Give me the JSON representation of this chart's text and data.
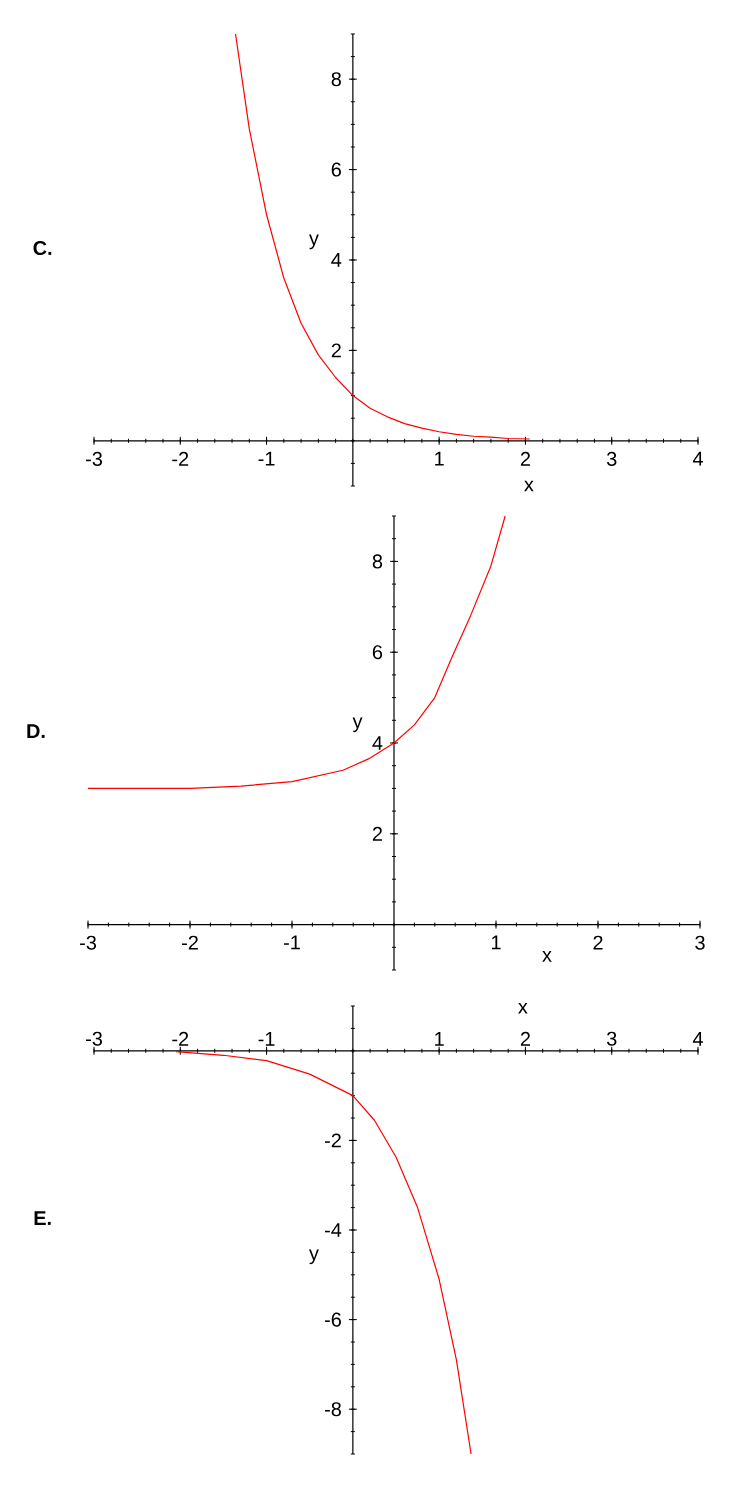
{
  "chart_data": [
    {
      "type": "line",
      "title": "C.",
      "xlabel": "x",
      "ylabel": "y",
      "xlim": [
        -3,
        4
      ],
      "ylim": [
        -1,
        9
      ],
      "xticks": [
        -3,
        -2,
        -1,
        1,
        2,
        3,
        4
      ],
      "yticks": [
        2,
        4,
        6,
        8
      ],
      "color": "#ff0000",
      "marker": "none",
      "x": [
        -1.36,
        -1.2,
        -1.0,
        -0.8,
        -0.6,
        -0.4,
        -0.2,
        0,
        0.2,
        0.4,
        0.6,
        0.8,
        1.0,
        1.2,
        1.4,
        1.6,
        1.8,
        2.05
      ],
      "values": [
        9.0,
        6.9,
        5.0,
        3.6,
        2.6,
        1.9,
        1.4,
        1.0,
        0.72,
        0.53,
        0.38,
        0.28,
        0.2,
        0.14,
        0.1,
        0.08,
        0.05,
        0.04
      ]
    },
    {
      "type": "line",
      "title": "D.",
      "xlabel": "x",
      "ylabel": "y",
      "xlim": [
        -3,
        3
      ],
      "ylim": [
        -1,
        9
      ],
      "xticks": [
        -3,
        -2,
        -1,
        1,
        2,
        3
      ],
      "yticks": [
        2,
        4,
        6,
        8
      ],
      "color": "#ff0000",
      "marker": "none",
      "x": [
        -3,
        -2,
        -1.5,
        -1,
        -0.5,
        -0.25,
        0,
        0.2,
        0.4,
        0.57,
        0.75,
        0.95,
        1.09
      ],
      "values": [
        3.0,
        3.0,
        3.05,
        3.15,
        3.4,
        3.65,
        4.0,
        4.4,
        5.0,
        5.9,
        6.8,
        7.9,
        9.0
      ]
    },
    {
      "type": "line",
      "title": "E.",
      "xlabel": "x",
      "ylabel": "y",
      "xlim": [
        -3,
        4
      ],
      "ylim": [
        -9,
        1
      ],
      "xticks": [
        -3,
        -2,
        -1,
        1,
        2,
        3,
        4
      ],
      "yticks": [
        -2,
        -4,
        -6,
        -8
      ],
      "color": "#ff0000",
      "marker": "none",
      "x": [
        -2.05,
        -1.5,
        -1.0,
        -0.5,
        0,
        0.25,
        0.5,
        0.75,
        1.0,
        1.2,
        1.37
      ],
      "values": [
        -0.02,
        -0.1,
        -0.22,
        -0.52,
        -1.0,
        -1.55,
        -2.37,
        -3.5,
        -5.1,
        -6.9,
        -9.0
      ]
    }
  ]
}
